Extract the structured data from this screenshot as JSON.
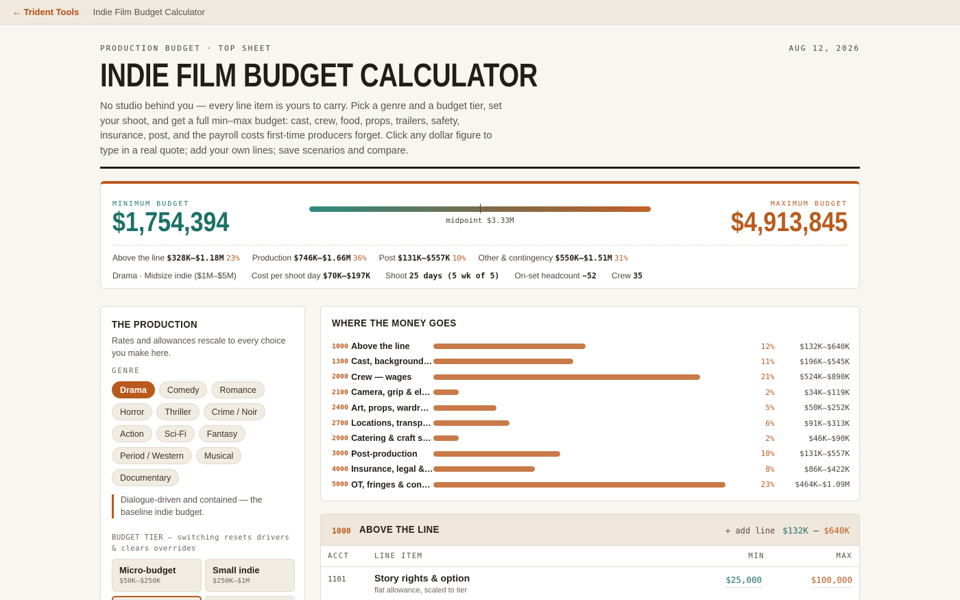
{
  "topbar": {
    "back_label": "← Trident Tools",
    "separator": "·",
    "crumb": "Indie Film Budget Calculator"
  },
  "header": {
    "eyebrow": "PRODUCTION BUDGET · TOP SHEET",
    "date": "AUG 12, 2026",
    "title": "INDIE FILM BUDGET CALCULATOR",
    "lede": "No studio behind you — every line item is yours to carry. Pick a genre and a budget tier, set your shoot, and get a full min–max budget: cast, crew, food, props, trailers, safety, insurance, post, and the payroll costs first-time producers forget. Click any dollar figure to type in a real quote; add your own lines; save scenarios and compare."
  },
  "summary": {
    "min_label": "MINIMUM BUDGET",
    "min_value": "$1,754,394",
    "max_label": "MAXIMUM BUDGET",
    "max_value": "$4,913,845",
    "midpoint": "midpoint $3.33M",
    "row1": [
      {
        "label": "Above the line",
        "value": "$328K–$1.18M",
        "pct": "23%"
      },
      {
        "label": "Production",
        "value": "$746K–$1.66M",
        "pct": "36%"
      },
      {
        "label": "Post",
        "value": "$131K–$557K",
        "pct": "10%"
      },
      {
        "label": "Other & contingency",
        "value": "$550K–$1.51M",
        "pct": "31%"
      }
    ],
    "row2": {
      "genre_tier": "Drama · Midsize indie ($1M–$5M)",
      "cpd_label": "Cost per shoot day",
      "cpd_value": "$70K–$197K",
      "shoot_label": "Shoot",
      "shoot_value": "25 days (5 wk of 5)",
      "headcount_label": "On-set headcount",
      "headcount_value": "~52",
      "crew_label": "Crew",
      "crew_value": "35"
    }
  },
  "production": {
    "title": "THE PRODUCTION",
    "desc": "Rates and allowances rescale to every choice you make here.",
    "genre_label": "GENRE",
    "genres": [
      "Drama",
      "Comedy",
      "Romance",
      "Horror",
      "Thriller",
      "Crime / Noir",
      "Action",
      "Sci-Fi",
      "Fantasy",
      "Period / Western",
      "Musical",
      "Documentary"
    ],
    "active_genre": "Drama",
    "genre_note": "Dialogue-driven and contained — the baseline indie budget.",
    "tier_label": "BUDGET TIER — switching resets drivers & clears overrides",
    "tiers": [
      {
        "name": "Micro-budget",
        "range": "$50K–$250K"
      },
      {
        "name": "Small indie",
        "range": "$250K–$1M"
      }
    ]
  },
  "money": {
    "title": "WHERE THE MONEY GOES",
    "rows": [
      {
        "code": "1000",
        "name": "Above the line",
        "pct": "12%",
        "range": "$132K–$640K"
      },
      {
        "code": "1300",
        "name": "Cast, background…",
        "pct": "11%",
        "range": "$196K–$545K"
      },
      {
        "code": "2000",
        "name": "Crew — wages",
        "pct": "21%",
        "range": "$524K–$890K"
      },
      {
        "code": "2100",
        "name": "Camera, grip & el…",
        "pct": "2%",
        "range": "$34K–$119K"
      },
      {
        "code": "2400",
        "name": "Art, props, wardr…",
        "pct": "5%",
        "range": "$50K–$252K"
      },
      {
        "code": "2700",
        "name": "Locations, transp…",
        "pct": "6%",
        "range": "$91K–$313K"
      },
      {
        "code": "2900",
        "name": "Catering & craft s…",
        "pct": "2%",
        "range": "$46K–$90K"
      },
      {
        "code": "3000",
        "name": "Post-production",
        "pct": "10%",
        "range": "$131K–$557K"
      },
      {
        "code": "4000",
        "name": "Insurance, legal &…",
        "pct": "8%",
        "range": "$86K–$422K"
      },
      {
        "code": "5000",
        "name": "OT, fringes & con…",
        "pct": "23%",
        "range": "$464K–$1.09M"
      }
    ]
  },
  "atl": {
    "code": "1000",
    "title": "ABOVE THE LINE",
    "add_line": "+ add line",
    "range_min": "$132K",
    "range_dash": "–",
    "range_max": "$640K",
    "col_acct": "ACCT",
    "col_item": "LINE ITEM",
    "col_min": "MIN",
    "col_max": "MAX",
    "lines": [
      {
        "acct": "1101",
        "item": "Story rights & option",
        "sub": "flat allowance, scaled to tier",
        "min": "$25,000",
        "max": "$100,000"
      }
    ]
  },
  "colors": {
    "accent": "#b95a1c",
    "teal": "#1b7068",
    "ink": "#231d18",
    "paper": "#f8f6f1"
  }
}
